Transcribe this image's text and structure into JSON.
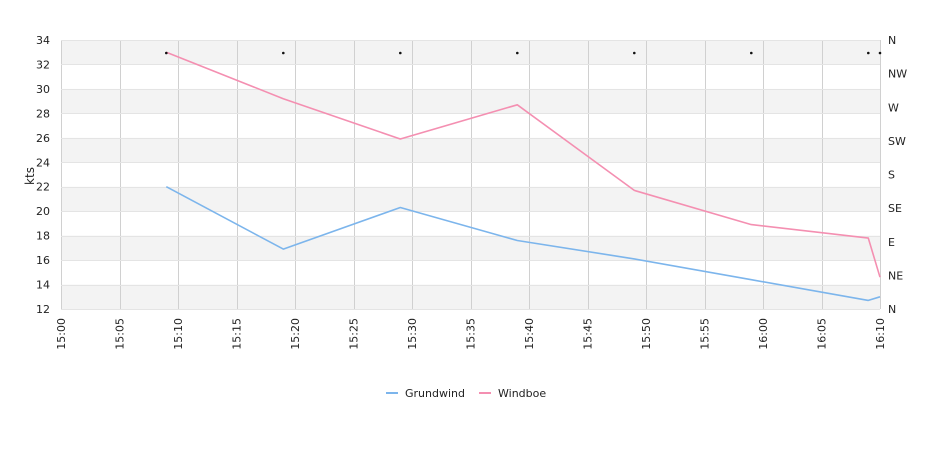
{
  "chart_data": {
    "type": "line",
    "ylabel": "kts",
    "ylim": [
      12,
      34
    ],
    "yticks": [
      12,
      14,
      16,
      18,
      20,
      22,
      24,
      26,
      28,
      30,
      32,
      34
    ],
    "xlim": [
      "15:00",
      "16:10"
    ],
    "xticks": [
      "15:00",
      "15:05",
      "15:10",
      "15:15",
      "15:20",
      "15:25",
      "15:30",
      "15:35",
      "15:40",
      "15:45",
      "15:50",
      "15:55",
      "16:00",
      "16:05",
      "16:10"
    ],
    "direction_axis_labels": [
      "N",
      "NW",
      "W",
      "SW",
      "S",
      "SE",
      "E",
      "NE",
      "N"
    ],
    "grid": true,
    "legend_position": "bottom",
    "series": [
      {
        "name": "Grundwind",
        "color": "#7cb5ec",
        "x": [
          "15:09",
          "15:19",
          "15:29",
          "15:39",
          "15:49",
          "15:59",
          "16:09",
          "16:10"
        ],
        "values": [
          22.0,
          16.9,
          20.3,
          17.6,
          16.1,
          14.4,
          12.7,
          13.0
        ]
      },
      {
        "name": "Windboe",
        "color": "#f48fb1",
        "x": [
          "15:09",
          "15:19",
          "15:29",
          "15:39",
          "15:49",
          "15:59",
          "16:09",
          "16:10"
        ],
        "values": [
          33.0,
          29.2,
          25.9,
          28.7,
          21.7,
          18.9,
          17.8,
          14.6
        ]
      }
    ],
    "direction_markers": {
      "x": [
        "15:09",
        "15:19",
        "15:29",
        "15:39",
        "15:49",
        "15:59",
        "16:09",
        "16:10"
      ],
      "direction": [
        "N",
        "N",
        "N",
        "N",
        "N",
        "N",
        "N",
        "N"
      ]
    }
  }
}
